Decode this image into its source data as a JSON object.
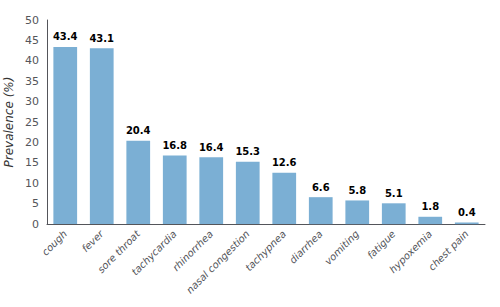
{
  "chart_data": {
    "type": "bar",
    "categories": [
      "cough",
      "fever",
      "sore throat",
      "tachycardia",
      "rhinorrhea",
      "nasal congestion",
      "tachypnea",
      "diarrhea",
      "vomiting",
      "fatigue",
      "hypoxemia",
      "chest pain"
    ],
    "values": [
      43.4,
      43.1,
      20.4,
      16.8,
      16.4,
      15.3,
      12.6,
      6.6,
      5.8,
      5.1,
      1.8,
      0.4
    ],
    "color": "#7bafd4",
    "ylabel": "Prevalence (%)",
    "ylim": [
      0,
      50
    ],
    "yticks": [
      0,
      5,
      10,
      15,
      20,
      25,
      30,
      35,
      40,
      45,
      50
    ],
    "grid": false,
    "data_labels": true
  }
}
